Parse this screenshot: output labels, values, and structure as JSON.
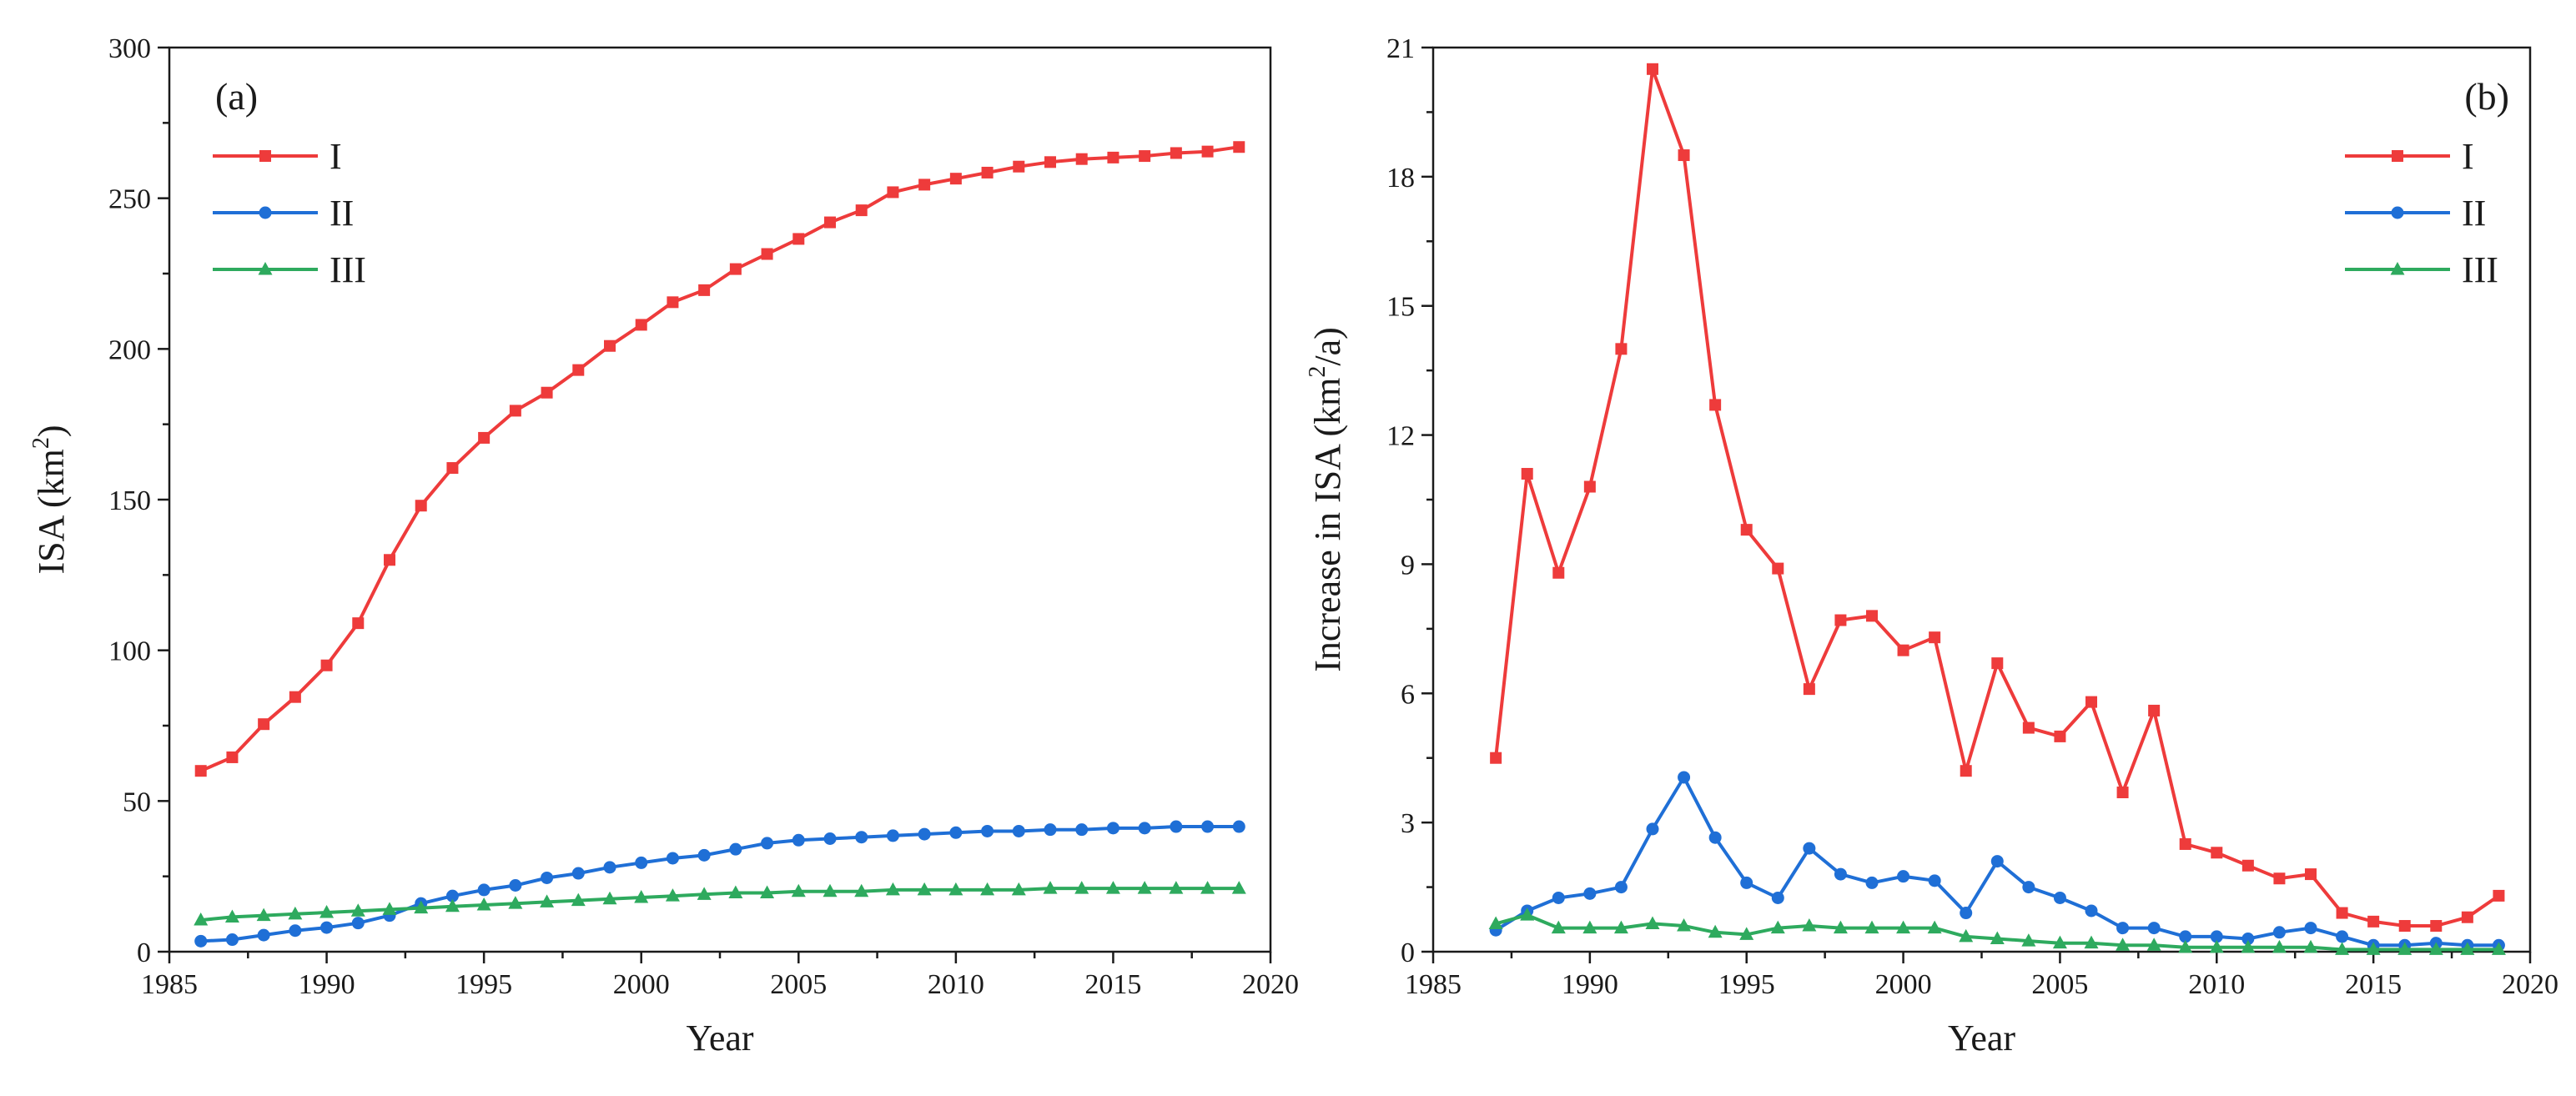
{
  "chart_data": [
    {
      "panel": "(a)",
      "type": "line",
      "xlabel": "Year",
      "ylabel_main": "ISA  (km",
      "ylabel_sup": "2",
      "ylabel_tail": ")",
      "xlim": [
        1985,
        2020
      ],
      "ylim": [
        0,
        300
      ],
      "xticks": [
        1985,
        1990,
        1995,
        2000,
        2005,
        2010,
        2015,
        2020
      ],
      "yticks": [
        0,
        50,
        100,
        150,
        200,
        250,
        300
      ],
      "legend_position": "top-left",
      "x": [
        1986,
        1987,
        1988,
        1989,
        1990,
        1991,
        1992,
        1993,
        1994,
        1995,
        1996,
        1997,
        1998,
        1999,
        2000,
        2001,
        2002,
        2003,
        2004,
        2005,
        2006,
        2007,
        2008,
        2009,
        2010,
        2011,
        2012,
        2013,
        2014,
        2015,
        2016,
        2017,
        2018,
        2019
      ],
      "series": [
        {
          "name": "I",
          "color": "#ee3b3b",
          "marker": "square",
          "values": [
            60,
            64.5,
            75.5,
            84.5,
            95,
            109,
            130,
            148,
            160.5,
            170.5,
            179.5,
            185.5,
            193,
            201,
            208,
            215.5,
            219.5,
            226.5,
            231.5,
            236.5,
            242,
            246,
            252,
            254.5,
            256.5,
            258.5,
            260.5,
            262,
            263,
            263.5,
            264,
            265,
            265.5,
            267
          ]
        },
        {
          "name": "II",
          "color": "#1f6fd6",
          "marker": "circle",
          "values": [
            3.5,
            4,
            5.5,
            7,
            8,
            9.5,
            12,
            16,
            18.5,
            20.5,
            22,
            24.5,
            26,
            28,
            29.5,
            31,
            32,
            34,
            36,
            37,
            37.5,
            38,
            38.5,
            39,
            39.5,
            40,
            40,
            40.5,
            40.5,
            41,
            41,
            41.5,
            41.5,
            41.5
          ]
        },
        {
          "name": "III",
          "color": "#2eaa5e",
          "marker": "triangle",
          "values": [
            10.5,
            11.5,
            12,
            12.5,
            13,
            13.5,
            14,
            14.5,
            15,
            15.5,
            16,
            16.5,
            17,
            17.5,
            18,
            18.5,
            19,
            19.5,
            19.5,
            20,
            20,
            20,
            20.5,
            20.5,
            20.5,
            20.5,
            20.5,
            21,
            21,
            21,
            21,
            21,
            21,
            21
          ]
        }
      ]
    },
    {
      "panel": "(b)",
      "type": "line",
      "xlabel": "Year",
      "ylabel_main": "Increase in ISA  (km",
      "ylabel_sup": "2",
      "ylabel_tail": "/a)",
      "xlim": [
        1985,
        2020
      ],
      "ylim": [
        0,
        21
      ],
      "xticks": [
        1985,
        1990,
        1995,
        2000,
        2005,
        2010,
        2015,
        2020
      ],
      "yticks": [
        0,
        3,
        6,
        9,
        12,
        15,
        18,
        21
      ],
      "legend_position": "top-right",
      "x": [
        1987,
        1988,
        1989,
        1990,
        1991,
        1992,
        1993,
        1994,
        1995,
        1996,
        1997,
        1998,
        1999,
        2000,
        2001,
        2002,
        2003,
        2004,
        2005,
        2006,
        2007,
        2008,
        2009,
        2010,
        2011,
        2012,
        2013,
        2014,
        2015,
        2016,
        2017,
        2018,
        2019
      ],
      "series": [
        {
          "name": "I",
          "color": "#ee3b3b",
          "marker": "square",
          "values": [
            4.5,
            11.1,
            8.8,
            10.8,
            14,
            20.5,
            18.5,
            12.7,
            9.8,
            8.9,
            6.1,
            7.7,
            7.8,
            7,
            7.3,
            4.2,
            6.7,
            5.2,
            5,
            5.8,
            3.7,
            5.6,
            2.5,
            2.3,
            2,
            1.7,
            1.8,
            0.9,
            0.7,
            0.6,
            0.6,
            0.8,
            1.3
          ]
        },
        {
          "name": "II",
          "color": "#1f6fd6",
          "marker": "circle",
          "values": [
            0.5,
            0.95,
            1.25,
            1.35,
            1.5,
            2.85,
            4.05,
            2.65,
            1.6,
            1.25,
            2.4,
            1.8,
            1.6,
            1.75,
            1.65,
            0.9,
            2.1,
            1.5,
            1.25,
            0.95,
            0.55,
            0.55,
            0.35,
            0.35,
            0.3,
            0.45,
            0.55,
            0.35,
            0.15,
            0.15,
            0.2,
            0.15,
            0.15
          ]
        },
        {
          "name": "III",
          "color": "#2eaa5e",
          "marker": "triangle",
          "values": [
            0.65,
            0.85,
            0.55,
            0.55,
            0.55,
            0.65,
            0.6,
            0.45,
            0.4,
            0.55,
            0.6,
            0.55,
            0.55,
            0.55,
            0.55,
            0.35,
            0.3,
            0.25,
            0.2,
            0.2,
            0.15,
            0.15,
            0.1,
            0.1,
            0.1,
            0.1,
            0.1,
            0.05,
            0.05,
            0.05,
            0.05,
            0.05,
            0.05
          ]
        }
      ]
    }
  ]
}
